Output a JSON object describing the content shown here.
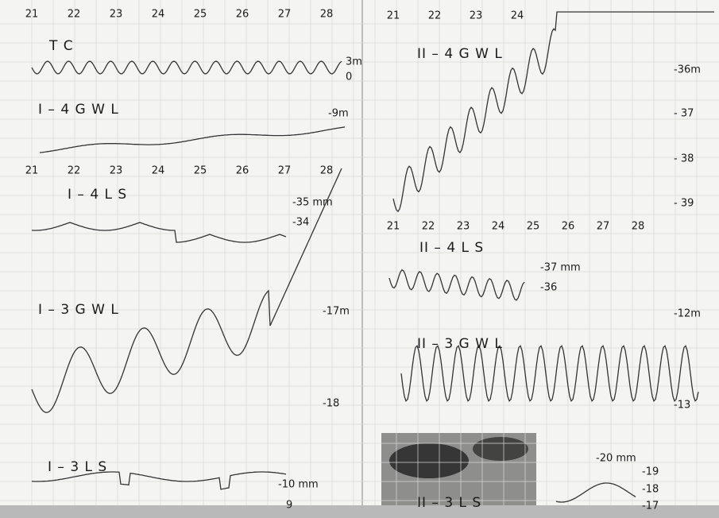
{
  "panels": [
    {
      "label": "T C",
      "dates": [
        "21",
        "22",
        "23",
        "24",
        "25",
        "26",
        "27",
        "28"
      ],
      "scales": [
        "3m",
        "0"
      ]
    },
    {
      "label": "I – 4   G W L",
      "scales": [
        "-9m"
      ]
    },
    {
      "label": "I – 4   L S",
      "dates": [
        "21",
        "22",
        "23",
        "24",
        "25",
        "26",
        "27",
        "28"
      ],
      "scales": [
        "-35 mm",
        "-34"
      ]
    },
    {
      "label": "I – 3   G W L",
      "scales": [
        "-17m",
        "-18"
      ]
    },
    {
      "label": "I – 3   L S",
      "scales": [
        "-10 mm",
        "9"
      ]
    },
    {
      "label": "II – 4   G W L",
      "dates": [
        "21",
        "22",
        "23",
        "24"
      ],
      "scales": [
        "-36m",
        "- 37",
        "- 38",
        "- 39"
      ]
    },
    {
      "label": "II – 4   L S",
      "dates": [
        "21",
        "22",
        "23",
        "24",
        "25",
        "26",
        "27",
        "28"
      ],
      "scales": [
        "-37 mm",
        "-36"
      ]
    },
    {
      "label": "II – 3   G W L",
      "scales": [
        "-12m",
        "-13"
      ]
    },
    {
      "label": "II – 3   L S",
      "scales": [
        "-20 mm",
        "-19",
        "-18",
        "-17"
      ]
    }
  ]
}
